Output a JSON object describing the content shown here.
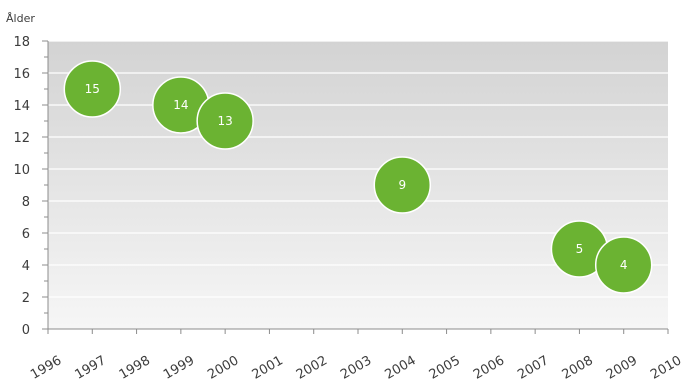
{
  "chart_title": "",
  "chart_data": {
    "type": "scatter",
    "title": "",
    "xlabel": "",
    "ylabel": "Ålder",
    "xlim": [
      1996,
      2010
    ],
    "ylim": [
      0,
      18
    ],
    "x_ticks": [
      1996,
      1997,
      1998,
      1999,
      2000,
      2001,
      2002,
      2003,
      2004,
      2005,
      2006,
      2007,
      2008,
      2009,
      2010
    ],
    "y_ticks": [
      0,
      2,
      4,
      6,
      8,
      10,
      12,
      14,
      16,
      18
    ],
    "grid": true,
    "points": [
      {
        "x": 1997,
        "y": 15,
        "label": "15"
      },
      {
        "x": 1999,
        "y": 14,
        "label": "14"
      },
      {
        "x": 2000,
        "y": 13,
        "label": "13"
      },
      {
        "x": 2004,
        "y": 9,
        "label": "9"
      },
      {
        "x": 2008,
        "y": 5,
        "label": "5"
      },
      {
        "x": 2009,
        "y": 4,
        "label": "4"
      }
    ],
    "colors": {
      "point": "#6bb332",
      "point_stroke": "#ffffff",
      "title": "#6bb332",
      "plot_bg_top": "#d3d3d3",
      "plot_bg_bottom": "#f6f6f6",
      "gridline": "#ffffff",
      "axis": "#8c8c8c",
      "text": "#3c3c3c"
    }
  }
}
